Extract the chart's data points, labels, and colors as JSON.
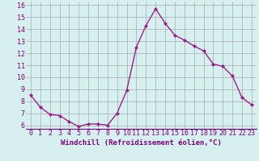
{
  "x": [
    0,
    1,
    2,
    3,
    4,
    5,
    6,
    7,
    8,
    9,
    10,
    11,
    12,
    13,
    14,
    15,
    16,
    17,
    18,
    19,
    20,
    21,
    22,
    23
  ],
  "y": [
    8.5,
    7.5,
    6.9,
    6.8,
    6.3,
    5.9,
    6.1,
    6.1,
    6.0,
    7.0,
    8.9,
    12.5,
    14.3,
    15.7,
    14.5,
    13.5,
    13.1,
    12.6,
    12.2,
    11.1,
    10.9,
    10.1,
    8.3,
    7.7
  ],
  "line_color": "#9b1f8e",
  "marker": "D",
  "marker_size": 2.0,
  "bg_color": "#d6f0ef",
  "grid_color": "#aaaaaa",
  "xlabel": "Windchill (Refroidissement éolien,°C)",
  "ylabel": "",
  "xlim_min": -0.5,
  "xlim_max": 23.5,
  "ylim_min": 5.7,
  "ylim_max": 16.3,
  "xticks": [
    0,
    1,
    2,
    3,
    4,
    5,
    6,
    7,
    8,
    9,
    10,
    11,
    12,
    13,
    14,
    15,
    16,
    17,
    18,
    19,
    20,
    21,
    22,
    23
  ],
  "yticks": [
    6,
    7,
    8,
    9,
    10,
    11,
    12,
    13,
    14,
    15,
    16
  ],
  "xlabel_fontsize": 6.5,
  "tick_fontsize": 6.0,
  "line_width": 1.0
}
